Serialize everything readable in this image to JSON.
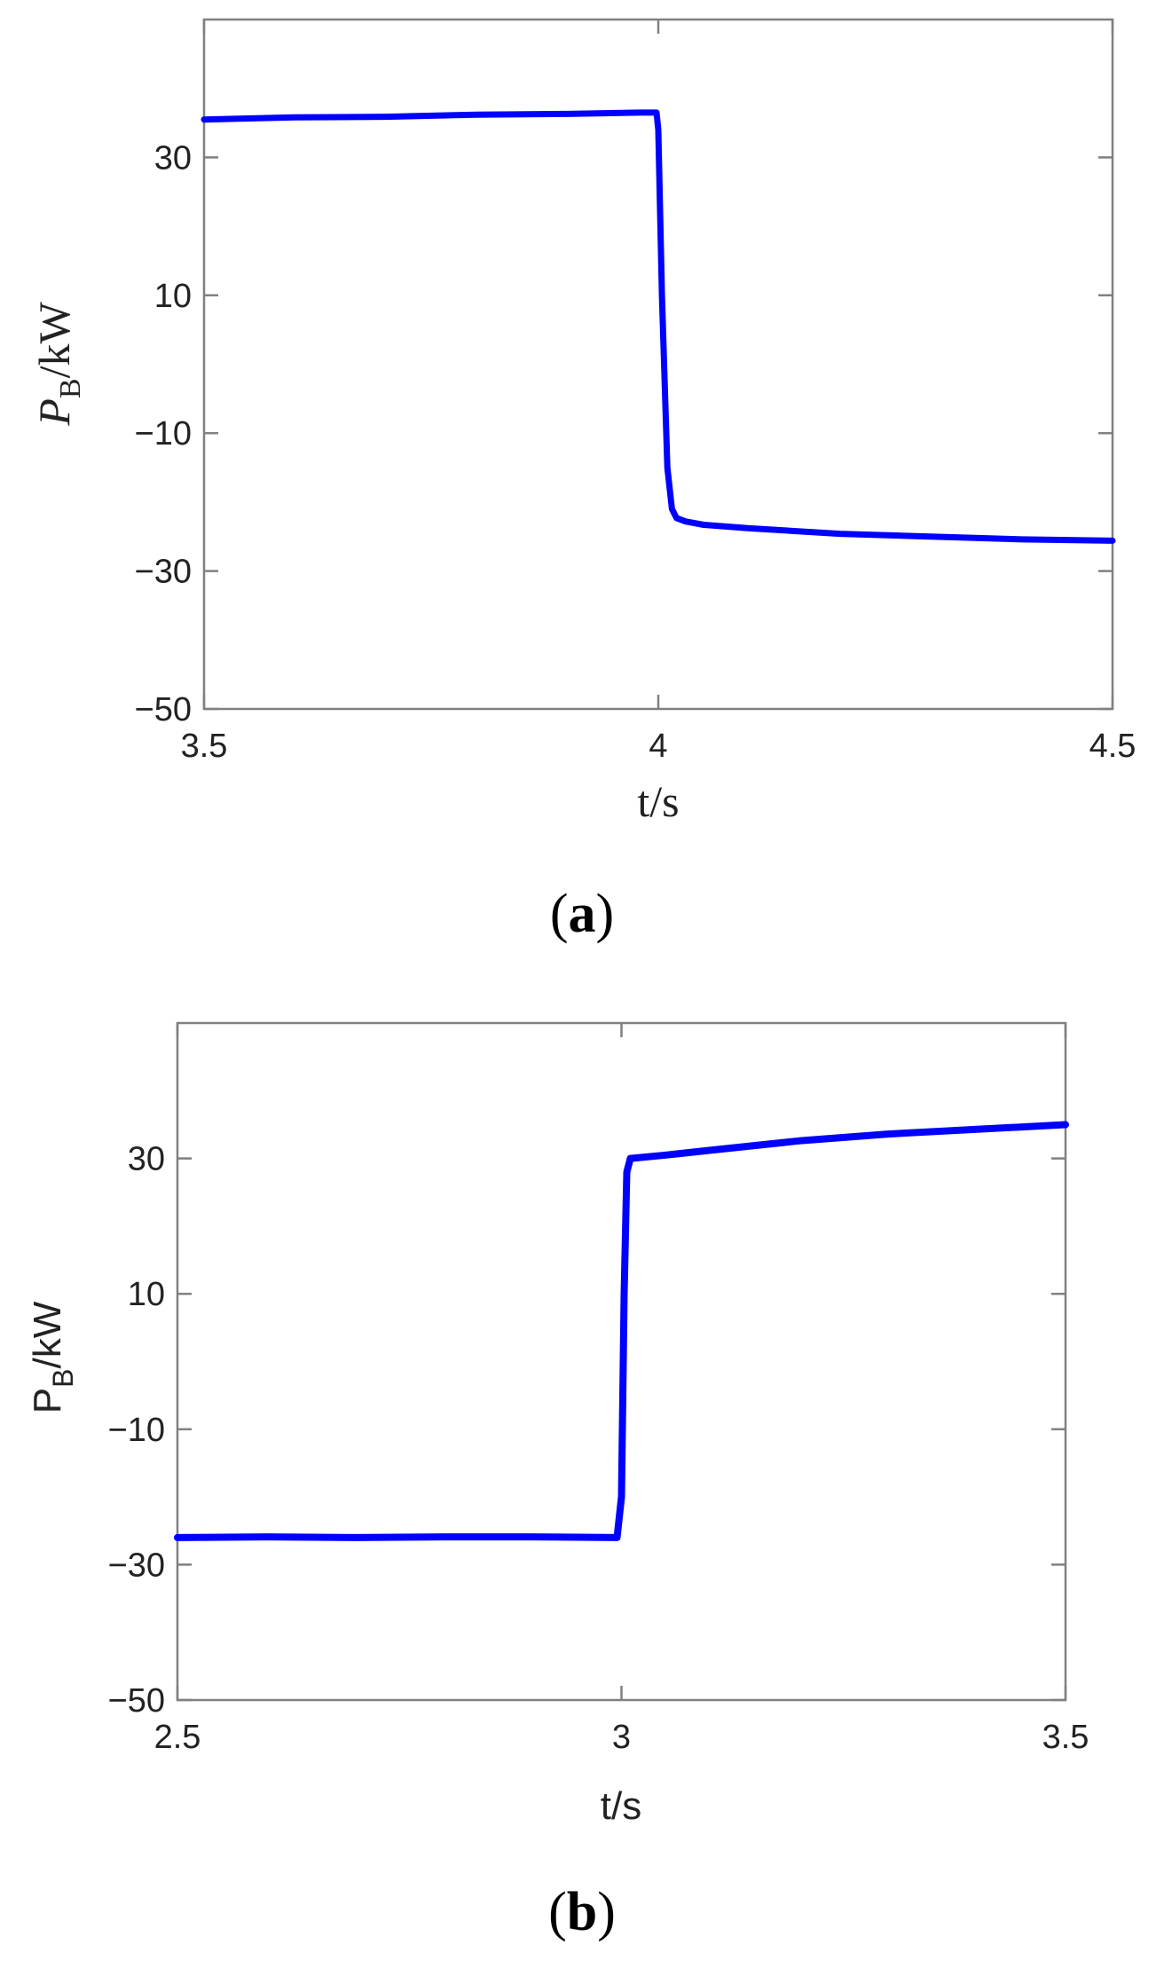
{
  "chart_data": [
    {
      "type": "line",
      "panel_label": "(a)",
      "panel_letter": "a",
      "xlabel": "t/s",
      "ylabel_main": "P",
      "ylabel_sub": "B",
      "ylabel_rest": "/kW",
      "xlim": [
        3.5,
        4.5
      ],
      "ylim": [
        -50,
        50
      ],
      "xticks": [
        3.5,
        4,
        4.5
      ],
      "xtick_labels": [
        "3.5",
        "4",
        "4.5"
      ],
      "yticks": [
        30,
        10,
        -10,
        -30,
        -50
      ],
      "ytick_labels": [
        "30",
        "10",
        "−10",
        "−30",
        "−50"
      ],
      "grid": false,
      "color": "#0000ff",
      "series": [
        {
          "x": [
            3.5,
            3.6,
            3.7,
            3.8,
            3.9,
            3.98,
            3.998,
            4.0,
            4.004,
            4.01,
            4.015,
            4.02,
            4.03,
            4.05,
            4.1,
            4.2,
            4.3,
            4.4,
            4.5
          ],
          "y": [
            35.5,
            35.8,
            35.9,
            36.2,
            36.3,
            36.5,
            36.5,
            34.0,
            10.0,
            -15.0,
            -21.0,
            -22.3,
            -22.8,
            -23.3,
            -23.8,
            -24.6,
            -25.0,
            -25.4,
            -25.6
          ]
        }
      ]
    },
    {
      "type": "line",
      "panel_label": "(b)",
      "panel_letter": "b",
      "xlabel": "t/s",
      "ylabel_main": "P",
      "ylabel_sub": "B",
      "ylabel_rest": "/kW",
      "xlim": [
        2.5,
        3.5
      ],
      "ylim": [
        -50,
        50
      ],
      "xticks": [
        2.5,
        3,
        3.5
      ],
      "xtick_labels": [
        "2.5",
        "3",
        "3.5"
      ],
      "yticks": [
        30,
        10,
        -10,
        -30,
        -50
      ],
      "ytick_labels": [
        "30",
        "10",
        "−10",
        "−30",
        "−50"
      ],
      "grid": false,
      "color": "#0000ff",
      "series": [
        {
          "x": [
            2.5,
            2.6,
            2.7,
            2.8,
            2.9,
            2.995,
            3.0,
            3.003,
            3.006,
            3.01,
            3.05,
            3.1,
            3.2,
            3.3,
            3.4,
            3.5
          ],
          "y": [
            -26.0,
            -25.9,
            -26.0,
            -25.9,
            -25.9,
            -26.0,
            -20.0,
            10.0,
            28.0,
            30.0,
            30.5,
            31.2,
            32.6,
            33.6,
            34.3,
            35.0
          ]
        }
      ]
    }
  ]
}
